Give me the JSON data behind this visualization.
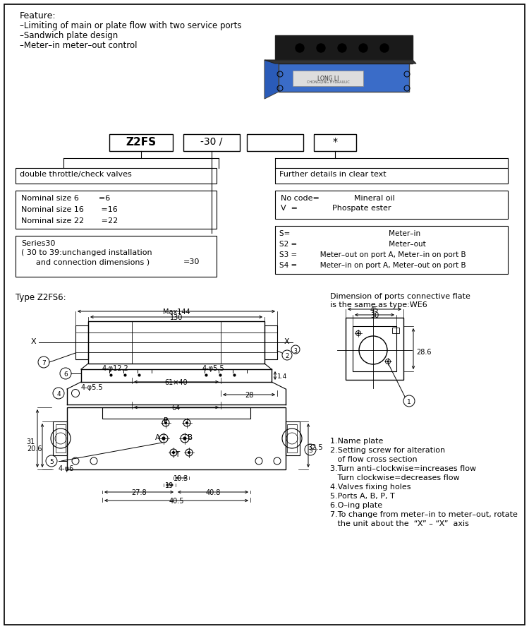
{
  "bg_color": "#ffffff",
  "feature_title": "Feature:",
  "feature_lines": [
    "–Limiting of main or plate flow with two service ports",
    "–Sandwich plate design",
    "–Meter–in meter–out control"
  ],
  "box1_text": "double throttle/check valves",
  "box2_lines": [
    "Nominal size 6        =6",
    "Nominal size 16       =16",
    "Nominal size 22       =22"
  ],
  "box3_lines": [
    "Series30",
    "( 30 to 39:unchanged installation",
    "      and connection dimensions )",
    "=30"
  ],
  "box4_text": "Further details in clear text",
  "box5_lines": [
    "No code=              Mineral oil",
    "V  =              Phospate ester"
  ],
  "box6_lines": [
    "S=                                           Meter–in",
    "S2 =                                        Meter–out",
    "S3 =          Meter–out on port A, Meter–in on port B",
    "S4 =          Meter–in on port A, Meter–out on port B"
  ],
  "type_label": "Type Z2FS6:",
  "dim_label": "Dimension of ports connective flate\nis the same as type:WE6",
  "notes": [
    "1.Name plate",
    "2.Setting screw for alteration",
    "   of flow cross section",
    "3.Turn anti–clockwise=increases flow",
    "   Turn clockwise=decreases flow",
    "4.Valves fixing holes",
    "5.Ports A, B, P, T",
    "6.O–ing plate",
    "7.To change from meter–in to meter–out, rotate",
    "   the unit about the  “X” – “X”  axis"
  ]
}
